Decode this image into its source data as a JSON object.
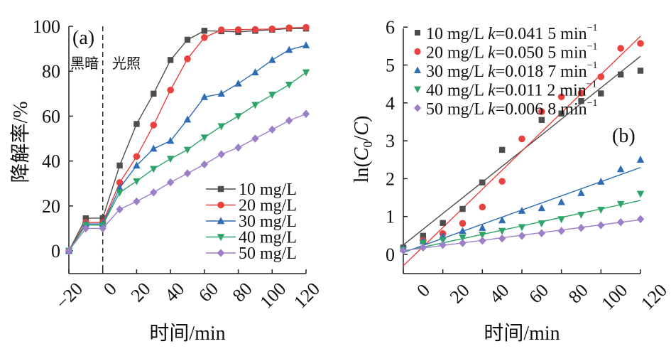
{
  "chart_data": [
    {
      "type": "line",
      "panel_label": "(a)",
      "annotations": [
        "黑暗",
        "光照"
      ],
      "xlabel": "时间/min",
      "ylabel": "降解率/%",
      "xlim": [
        -20,
        120
      ],
      "ylim": [
        -10,
        100
      ],
      "xticks": [
        -20,
        0,
        20,
        40,
        60,
        80,
        100,
        120
      ],
      "xtick_labels": [
        "−20",
        "0",
        "20",
        "40",
        "60",
        "80",
        "100",
        "120"
      ],
      "yticks": [
        0,
        20,
        40,
        60,
        80,
        100
      ],
      "ytick_labels": [
        "0",
        "20",
        "40",
        "60",
        "80",
        "100"
      ],
      "divider_x": 0,
      "legend_position": "bottom-right",
      "x": [
        -20,
        -10,
        0,
        10,
        20,
        30,
        40,
        50,
        60,
        70,
        80,
        90,
        100,
        110,
        120
      ],
      "series": [
        {
          "name": "10 mg/L",
          "color": "#4d4d4d",
          "marker": "square",
          "values": [
            0,
            14.5,
            14.6,
            38,
            56.5,
            70,
            85,
            94,
            98,
            97.8,
            97.5,
            98,
            98.5,
            99,
            99
          ]
        },
        {
          "name": "20 mg/L",
          "color": "#e8413e",
          "marker": "circle",
          "values": [
            0,
            12.7,
            12.7,
            30.4,
            42,
            56,
            71.6,
            85.5,
            95,
            98.4,
            98.5,
            98.6,
            98.8,
            99.3,
            99.5
          ]
        },
        {
          "name": "30 mg/L",
          "color": "#2e6db4",
          "marker": "triangle-up",
          "values": [
            0,
            12,
            12,
            28,
            38,
            45.5,
            49,
            58.5,
            68.5,
            70,
            74.5,
            79.5,
            85,
            89.5,
            91.5
          ]
        },
        {
          "name": "40 mg/L",
          "color": "#2ea36a",
          "marker": "triangle-down",
          "values": [
            0,
            11.5,
            11.5,
            26,
            31,
            36.5,
            41,
            45,
            50.5,
            55.5,
            60,
            65,
            69.5,
            74,
            79.5
          ]
        },
        {
          "name": "50 mg/L",
          "color": "#9b7fc7",
          "marker": "diamond",
          "values": [
            0,
            10,
            10,
            18.5,
            22,
            26,
            30.5,
            34.5,
            38.5,
            43,
            46,
            50,
            54,
            58,
            61
          ]
        }
      ]
    },
    {
      "type": "scatter",
      "panel_label": "(b)",
      "xlabel": "时间/min",
      "ylabel": {
        "prefix": "ln(",
        "var1": "C",
        "sub": "0",
        "mid": "/",
        "var2": "C",
        "suffix": ")"
      },
      "xlim": [
        0,
        120
      ],
      "ylim": [
        -0.5,
        6
      ],
      "xticks": [
        0,
        20,
        40,
        60,
        80,
        100,
        120
      ],
      "xtick_labels": [
        "0",
        "20",
        "40",
        "60",
        "80",
        "100",
        "120"
      ],
      "yticks": [
        0,
        1,
        2,
        3,
        4,
        5,
        6
      ],
      "ytick_labels": [
        "0",
        "1",
        "2",
        "3",
        "4",
        "5",
        "6"
      ],
      "legend_position": "top-left",
      "x": [
        0,
        10,
        20,
        30,
        40,
        50,
        60,
        70,
        80,
        90,
        100,
        110,
        120
      ],
      "series": [
        {
          "name": "10 mg/L",
          "k_label": "k",
          "k_value": "=0.041 5 min",
          "unit_sup": "−1",
          "color": "#4d4d4d",
          "marker": "square",
          "values": [
            0.18,
            0.49,
            0.83,
            1.2,
            1.9,
            2.76,
            null,
            3.55,
            3.72,
            4.05,
            4.25,
            4.75,
            4.85
          ],
          "fit": {
            "slope": 0.0415,
            "intercept": 0.25
          }
        },
        {
          "name": "20 mg/L",
          "k_label": "k",
          "k_value": "=0.050 5 min",
          "unit_sup": "−1",
          "color": "#e8413e",
          "marker": "circle",
          "values": [
            null,
            0.37,
            0.55,
            0.82,
            1.25,
            1.93,
            3.05,
            3.77,
            4.16,
            4.26,
            4.69,
            5.44,
            5.57
          ],
          "fit": {
            "slope": 0.0505,
            "intercept": -0.3
          }
        },
        {
          "name": "30 mg/L",
          "k_label": "k",
          "k_value": "=0.018 7 min",
          "unit_sup": "−1",
          "color": "#2e6db4",
          "marker": "triangle-up",
          "values": [
            0.15,
            0.35,
            0.48,
            0.62,
            0.7,
            0.9,
            1.15,
            1.22,
            1.38,
            1.62,
            1.92,
            2.25,
            2.5
          ],
          "fit": {
            "slope": 0.0187,
            "intercept": 0.05
          }
        },
        {
          "name": "40 mg/L",
          "k_label": "k",
          "k_value": "=0.011 2 min",
          "unit_sup": "−1",
          "color": "#2ea36a",
          "marker": "triangle-down",
          "values": [
            0.12,
            0.3,
            0.38,
            0.45,
            0.52,
            0.62,
            0.72,
            0.82,
            0.93,
            1.05,
            1.18,
            1.33,
            1.6
          ],
          "fit": {
            "slope": 0.0112,
            "intercept": 0.08
          }
        },
        {
          "name": "50 mg/L",
          "k_label": "k",
          "k_value": "=0.006 8 min",
          "unit_sup": "−1",
          "color": "#9b7fc7",
          "marker": "diamond",
          "values": [
            0.1,
            0.18,
            0.25,
            0.3,
            0.36,
            0.42,
            0.49,
            0.56,
            0.62,
            0.7,
            0.77,
            0.85,
            0.93
          ],
          "fit": {
            "slope": 0.0068,
            "intercept": 0.1
          }
        }
      ]
    }
  ]
}
